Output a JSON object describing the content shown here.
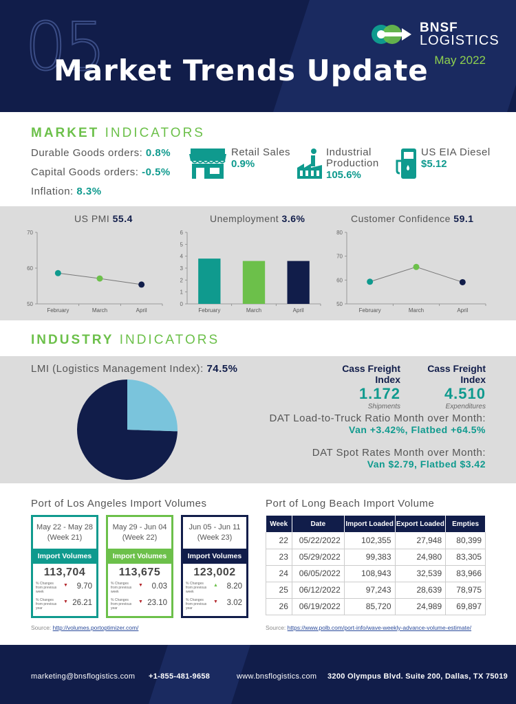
{
  "header": {
    "number": "05",
    "title": "Market Trends Update",
    "brand": "BNSF",
    "brand_sub": "LOGISTICS",
    "date": "May 2022",
    "colors": {
      "navy": "#111d4a",
      "teal": "#0f9a8e",
      "green": "#6cc04a"
    }
  },
  "market": {
    "title_bold": "MARKET",
    "title_rest": "INDICATORS",
    "lines": [
      {
        "label": "Durable Goods orders:",
        "value": "0.8%"
      },
      {
        "label": "Capital Goods orders:",
        "value": "-0.5%"
      },
      {
        "label": "Inflation:",
        "value": "8.3%"
      }
    ],
    "indicators": [
      {
        "icon": "store-icon",
        "label": "Retail Sales",
        "value": "0.9%"
      },
      {
        "icon": "factory-icon",
        "label": "Industrial Production",
        "label1": "Industrial",
        "label2": "Production",
        "value": "105.6%"
      },
      {
        "icon": "fuel-pump-icon",
        "label": "US EIA Diesel",
        "value": "$5.12"
      }
    ]
  },
  "charts": {
    "pmi": {
      "title": "US PMI",
      "value": "55.4"
    },
    "unemployment": {
      "title": "Unemployment",
      "value": "3.6%"
    },
    "confidence": {
      "title": "Customer Confidence",
      "value": "59.1"
    }
  },
  "chart_data": [
    {
      "type": "line",
      "title": "US PMI 55.4",
      "categories": [
        "February",
        "March",
        "April"
      ],
      "values": [
        58.6,
        57.1,
        55.4
      ],
      "ylim": [
        50,
        70
      ],
      "yticks": [
        50,
        60,
        70
      ],
      "point_colors": [
        "#0f9a8e",
        "#6cc04a",
        "#111d4a"
      ]
    },
    {
      "type": "bar",
      "title": "Unemployment 3.6%",
      "categories": [
        "February",
        "March",
        "April"
      ],
      "values": [
        3.8,
        3.6,
        3.6
      ],
      "ylim": [
        0,
        6
      ],
      "yticks": [
        0,
        1,
        2,
        3,
        4,
        5,
        6
      ],
      "bar_colors": [
        "#0f9a8e",
        "#6cc04a",
        "#111d4a"
      ]
    },
    {
      "type": "line",
      "title": "Customer Confidence 59.1",
      "categories": [
        "February",
        "March",
        "April"
      ],
      "values": [
        59.3,
        65.5,
        59.1
      ],
      "ylim": [
        50,
        80
      ],
      "yticks": [
        50,
        60,
        70,
        80
      ],
      "point_colors": [
        "#0f9a8e",
        "#6cc04a",
        "#111d4a"
      ]
    },
    {
      "type": "pie",
      "title": "LMI (Logistics Management Index): 74.5%",
      "values": [
        74.5,
        25.5
      ],
      "colors": [
        "#111d4a",
        "#7ac4dc"
      ]
    }
  ],
  "industry": {
    "title_bold": "INDUSTRY",
    "title_rest": "INDICATORS",
    "lmi_label": "LMI (Logistics Management Index):",
    "lmi_value": "74.5%",
    "cass": [
      {
        "title": "Cass Freight Index",
        "value": "1.172",
        "sub": "Shipments"
      },
      {
        "title": "Cass Freight Index",
        "value": "4.510",
        "sub": "Expenditures"
      }
    ],
    "dat_ratio_label": "DAT Load-to-Truck Ratio Month over Month:",
    "dat_ratio_value": "Van +3.42%, Flatbed +64.5%",
    "dat_spot_label": "DAT Spot Rates Month over Month:",
    "dat_spot_value": "Van $2.79, Flatbed $3.42"
  },
  "la": {
    "title": "Port of Los Angeles Import Volumes",
    "cards": [
      {
        "range": "May 22 - May 28",
        "week": "(Week 21)",
        "header": "Import Volumes (TEU)",
        "value": "113,704",
        "week_label": "% Changes from previous week",
        "week_change": "9.70",
        "week_dir": "down",
        "year_label": "% Changes from previous year",
        "year_change": "26.21",
        "year_dir": "down",
        "color": "#0f9a8e"
      },
      {
        "range": "May 29 - Jun 04",
        "week": "(Week 22)",
        "header": "Import Volumes (TEU)",
        "value": "113,675",
        "week_label": "% Changes from previous week",
        "week_change": "0.03",
        "week_dir": "down",
        "year_label": "% Changes from previous year",
        "year_change": "23.10",
        "year_dir": "down",
        "color": "#6cc04a"
      },
      {
        "range": "Jun 05 - Jun 11",
        "week": "(Week 23)",
        "header": "Import Volumes (TEU)",
        "value": "123,002",
        "week_label": "% Changes from previous week",
        "week_change": "8.20",
        "week_dir": "up",
        "year_label": "% Changes from previous year",
        "year_change": "3.02",
        "year_dir": "down",
        "color": "#111d4a"
      }
    ],
    "source_label": "Source:",
    "source_url": "http://volumes.portoptimizer.com/"
  },
  "lb": {
    "title": "Port of Long Beach Import Volume",
    "columns": [
      "Week",
      "Date",
      "Import Loaded",
      "Export Loaded",
      "Empties"
    ],
    "rows": [
      [
        "22",
        "05/22/2022",
        "102,355",
        "27,948",
        "80,399"
      ],
      [
        "23",
        "05/29/2022",
        "99,383",
        "24,980",
        "83,305"
      ],
      [
        "24",
        "06/05/2022",
        "108,943",
        "32,539",
        "83,966"
      ],
      [
        "25",
        "06/12/2022",
        "97,243",
        "28,639",
        "78,975"
      ],
      [
        "26",
        "06/19/2022",
        "85,720",
        "24,989",
        "69,897"
      ]
    ],
    "source_label": "Source:",
    "source_url": "https://www.polb.com/port-info/wave-weekly-advance-volume-estimate/"
  },
  "footer": {
    "email": "marketing@bnsflogistics.com",
    "phone": "+1-855-481-9658",
    "website": "www.bnsflogistics.com",
    "address": "3200 Olympus Blvd. Suite 200, Dallas, TX 75019"
  }
}
